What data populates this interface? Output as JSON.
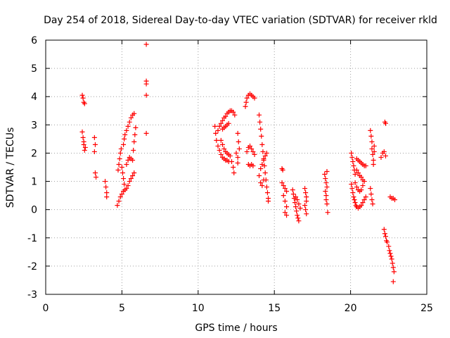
{
  "chart_data": {
    "type": "scatter",
    "title": "Day 254 of 2018, Sidereal Day-to-day VTEC variation (SDTVAR) for receiver rkld",
    "xlabel": "GPS time / hours",
    "ylabel": "SDTVAR / TECUs",
    "xlim": [
      0,
      25
    ],
    "ylim": [
      -3,
      6
    ],
    "xticks": [
      0,
      5,
      10,
      15,
      20,
      25
    ],
    "yticks": [
      -3,
      -2,
      -1,
      0,
      1,
      2,
      3,
      4,
      5,
      6
    ],
    "xtick_labels": [
      "0",
      "5",
      "10",
      "15",
      "20",
      "25"
    ],
    "ytick_labels": [
      "-3",
      "-2",
      "-1",
      "0",
      "1",
      "2",
      "3",
      "4",
      "5",
      "6"
    ],
    "grid": true,
    "marker": "+",
    "marker_color": "#ff0000",
    "series": [
      {
        "name": "SDTVAR",
        "points": [
          [
            2.4,
            4.05
          ],
          [
            2.45,
            3.95
          ],
          [
            2.5,
            3.8
          ],
          [
            2.55,
            3.75
          ],
          [
            2.4,
            2.75
          ],
          [
            2.45,
            2.55
          ],
          [
            2.5,
            2.3
          ],
          [
            2.55,
            2.1
          ],
          [
            2.5,
            2.4
          ],
          [
            2.6,
            2.2
          ],
          [
            3.2,
            2.55
          ],
          [
            3.25,
            2.3
          ],
          [
            3.2,
            2.05
          ],
          [
            3.25,
            1.3
          ],
          [
            3.3,
            1.15
          ],
          [
            3.9,
            1.0
          ],
          [
            3.95,
            0.8
          ],
          [
            4.0,
            0.6
          ],
          [
            4.0,
            0.45
          ],
          [
            4.7,
            0.15
          ],
          [
            4.8,
            0.3
          ],
          [
            4.9,
            0.45
          ],
          [
            5.0,
            0.55
          ],
          [
            5.1,
            0.65
          ],
          [
            5.2,
            0.7
          ],
          [
            5.3,
            0.75
          ],
          [
            5.4,
            0.85
          ],
          [
            5.5,
            1.0
          ],
          [
            5.6,
            1.1
          ],
          [
            5.7,
            1.2
          ],
          [
            5.8,
            1.3
          ],
          [
            4.75,
            1.4
          ],
          [
            4.8,
            1.6
          ],
          [
            4.85,
            1.8
          ],
          [
            4.9,
            2.0
          ],
          [
            4.95,
            2.15
          ],
          [
            5.0,
            1.5
          ],
          [
            5.05,
            1.3
          ],
          [
            5.1,
            1.1
          ],
          [
            5.15,
            0.9
          ],
          [
            5.1,
            2.3
          ],
          [
            5.15,
            2.5
          ],
          [
            5.2,
            2.65
          ],
          [
            5.3,
            2.8
          ],
          [
            5.4,
            2.95
          ],
          [
            5.5,
            3.1
          ],
          [
            5.6,
            3.25
          ],
          [
            5.7,
            3.35
          ],
          [
            5.8,
            3.4
          ],
          [
            5.3,
            1.6
          ],
          [
            5.4,
            1.75
          ],
          [
            5.5,
            1.85
          ],
          [
            5.6,
            1.8
          ],
          [
            5.7,
            1.75
          ],
          [
            5.75,
            2.1
          ],
          [
            5.8,
            2.4
          ],
          [
            5.85,
            2.65
          ],
          [
            5.9,
            2.9
          ],
          [
            6.6,
            5.85
          ],
          [
            6.6,
            4.55
          ],
          [
            6.6,
            4.45
          ],
          [
            6.6,
            4.05
          ],
          [
            6.6,
            2.7
          ],
          [
            11.1,
            2.95
          ],
          [
            11.15,
            2.7
          ],
          [
            11.2,
            2.45
          ],
          [
            11.3,
            2.25
          ],
          [
            11.4,
            2.1
          ],
          [
            11.5,
            1.95
          ],
          [
            11.6,
            1.85
          ],
          [
            11.7,
            1.8
          ],
          [
            11.8,
            1.75
          ],
          [
            11.9,
            1.75
          ],
          [
            12.0,
            1.7
          ],
          [
            11.3,
            2.8
          ],
          [
            11.4,
            2.95
          ],
          [
            11.5,
            3.05
          ],
          [
            11.6,
            3.15
          ],
          [
            11.7,
            3.25
          ],
          [
            11.8,
            3.3
          ],
          [
            11.9,
            3.4
          ],
          [
            12.0,
            3.45
          ],
          [
            12.1,
            3.5
          ],
          [
            12.2,
            3.5
          ],
          [
            12.3,
            3.45
          ],
          [
            12.4,
            3.35
          ],
          [
            11.6,
            2.85
          ],
          [
            11.7,
            2.9
          ],
          [
            11.8,
            2.95
          ],
          [
            11.9,
            3.0
          ],
          [
            12.0,
            3.05
          ],
          [
            11.5,
            2.45
          ],
          [
            11.6,
            2.3
          ],
          [
            11.7,
            2.15
          ],
          [
            11.8,
            2.05
          ],
          [
            11.9,
            2.0
          ],
          [
            12.0,
            1.95
          ],
          [
            12.1,
            1.9
          ],
          [
            12.2,
            1.7
          ],
          [
            12.3,
            1.5
          ],
          [
            12.35,
            1.3
          ],
          [
            12.5,
            2.0
          ],
          [
            12.6,
            1.85
          ],
          [
            12.6,
            1.65
          ],
          [
            12.6,
            2.7
          ],
          [
            12.65,
            2.4
          ],
          [
            12.7,
            2.15
          ],
          [
            13.1,
            3.65
          ],
          [
            13.15,
            3.8
          ],
          [
            13.2,
            3.95
          ],
          [
            13.3,
            4.05
          ],
          [
            13.4,
            4.1
          ],
          [
            13.5,
            4.05
          ],
          [
            13.6,
            4.0
          ],
          [
            13.7,
            3.95
          ],
          [
            13.2,
            2.05
          ],
          [
            13.3,
            2.2
          ],
          [
            13.4,
            2.25
          ],
          [
            13.5,
            2.15
          ],
          [
            13.6,
            2.05
          ],
          [
            13.7,
            1.95
          ],
          [
            13.3,
            1.6
          ],
          [
            13.4,
            1.55
          ],
          [
            13.5,
            1.6
          ],
          [
            13.6,
            1.55
          ],
          [
            14.0,
            3.35
          ],
          [
            14.05,
            3.1
          ],
          [
            14.1,
            2.85
          ],
          [
            14.15,
            2.6
          ],
          [
            14.2,
            2.3
          ],
          [
            14.25,
            2.05
          ],
          [
            14.3,
            1.8
          ],
          [
            14.35,
            1.55
          ],
          [
            14.4,
            1.3
          ],
          [
            14.45,
            1.05
          ],
          [
            14.5,
            0.8
          ],
          [
            14.55,
            0.6
          ],
          [
            14.6,
            0.4
          ],
          [
            14.6,
            0.3
          ],
          [
            14.0,
            1.2
          ],
          [
            14.1,
            1.45
          ],
          [
            14.2,
            1.6
          ],
          [
            14.3,
            1.75
          ],
          [
            14.4,
            1.9
          ],
          [
            14.5,
            2.0
          ],
          [
            14.1,
            0.95
          ],
          [
            14.2,
            0.85
          ],
          [
            14.3,
            1.05
          ],
          [
            15.5,
            1.45
          ],
          [
            15.55,
            1.4
          ],
          [
            15.5,
            0.95
          ],
          [
            15.6,
            0.85
          ],
          [
            15.7,
            0.75
          ],
          [
            15.8,
            0.65
          ],
          [
            15.6,
            0.5
          ],
          [
            15.7,
            0.3
          ],
          [
            15.8,
            0.1
          ],
          [
            15.7,
            -0.1
          ],
          [
            15.8,
            -0.2
          ],
          [
            16.2,
            0.7
          ],
          [
            16.25,
            0.55
          ],
          [
            16.3,
            0.4
          ],
          [
            16.35,
            0.25
          ],
          [
            16.4,
            0.1
          ],
          [
            16.45,
            -0.05
          ],
          [
            16.5,
            -0.2
          ],
          [
            16.55,
            -0.3
          ],
          [
            16.6,
            -0.4
          ],
          [
            16.4,
            0.45
          ],
          [
            16.5,
            0.35
          ],
          [
            16.6,
            0.2
          ],
          [
            16.7,
            0.05
          ],
          [
            17.0,
            0.75
          ],
          [
            17.05,
            0.6
          ],
          [
            17.1,
            0.45
          ],
          [
            17.1,
            0.3
          ],
          [
            17.0,
            0.15
          ],
          [
            17.05,
            0.0
          ],
          [
            17.1,
            -0.15
          ],
          [
            18.3,
            1.25
          ],
          [
            18.35,
            1.1
          ],
          [
            18.4,
            0.95
          ],
          [
            18.45,
            0.8
          ],
          [
            18.35,
            0.65
          ],
          [
            18.4,
            0.5
          ],
          [
            18.4,
            0.35
          ],
          [
            18.45,
            0.2
          ],
          [
            18.5,
            -0.1
          ],
          [
            18.45,
            1.35
          ],
          [
            20.05,
            2.0
          ],
          [
            20.1,
            1.85
          ],
          [
            20.15,
            1.7
          ],
          [
            20.2,
            1.55
          ],
          [
            20.25,
            1.4
          ],
          [
            20.3,
            1.25
          ],
          [
            20.05,
            0.9
          ],
          [
            20.1,
            0.75
          ],
          [
            20.15,
            0.6
          ],
          [
            20.2,
            0.45
          ],
          [
            20.25,
            0.35
          ],
          [
            20.3,
            0.25
          ],
          [
            20.35,
            0.15
          ],
          [
            20.4,
            0.1
          ],
          [
            20.5,
            0.05
          ],
          [
            20.6,
            0.1
          ],
          [
            20.7,
            0.15
          ],
          [
            20.8,
            0.25
          ],
          [
            20.9,
            0.35
          ],
          [
            21.0,
            0.45
          ],
          [
            20.3,
            0.95
          ],
          [
            20.4,
            0.8
          ],
          [
            20.5,
            0.7
          ],
          [
            20.6,
            0.65
          ],
          [
            20.7,
            0.7
          ],
          [
            20.8,
            0.85
          ],
          [
            20.9,
            1.0
          ],
          [
            20.4,
            1.4
          ],
          [
            20.5,
            1.3
          ],
          [
            20.6,
            1.2
          ],
          [
            20.7,
            1.15
          ],
          [
            20.8,
            1.05
          ],
          [
            20.4,
            1.8
          ],
          [
            20.5,
            1.75
          ],
          [
            20.6,
            1.7
          ],
          [
            20.7,
            1.65
          ],
          [
            20.8,
            1.6
          ],
          [
            20.9,
            1.55
          ],
          [
            21.0,
            1.55
          ],
          [
            21.3,
            2.8
          ],
          [
            21.35,
            2.6
          ],
          [
            21.4,
            2.4
          ],
          [
            21.4,
            2.15
          ],
          [
            21.45,
            1.95
          ],
          [
            21.5,
            1.75
          ],
          [
            21.5,
            1.6
          ],
          [
            21.3,
            0.75
          ],
          [
            21.35,
            0.55
          ],
          [
            21.4,
            0.35
          ],
          [
            21.45,
            0.2
          ],
          [
            21.55,
            2.05
          ],
          [
            21.55,
            2.25
          ],
          [
            22.0,
            1.85
          ],
          [
            22.1,
            2.0
          ],
          [
            22.2,
            2.05
          ],
          [
            22.3,
            1.9
          ],
          [
            22.25,
            3.1
          ],
          [
            22.3,
            3.05
          ],
          [
            22.2,
            -0.7
          ],
          [
            22.25,
            -0.85
          ],
          [
            22.3,
            -0.95
          ],
          [
            22.35,
            -1.1
          ],
          [
            22.4,
            -1.15
          ],
          [
            22.5,
            -1.3
          ],
          [
            22.55,
            -1.45
          ],
          [
            22.6,
            -1.55
          ],
          [
            22.65,
            -1.65
          ],
          [
            22.7,
            -1.75
          ],
          [
            22.75,
            -1.9
          ],
          [
            22.8,
            -2.05
          ],
          [
            22.85,
            -2.2
          ],
          [
            22.8,
            -2.55
          ],
          [
            22.6,
            0.45
          ],
          [
            22.7,
            0.4
          ],
          [
            22.8,
            0.4
          ],
          [
            22.9,
            0.35
          ]
        ]
      }
    ]
  }
}
